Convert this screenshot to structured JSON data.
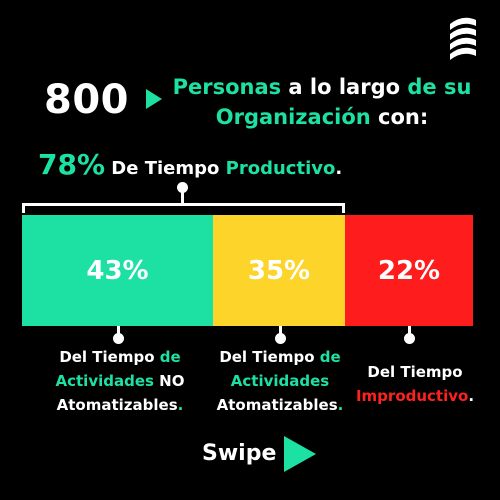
{
  "logo": {
    "icon": "brand-stripes-logo"
  },
  "headline": {
    "number": "800",
    "w1": "Personas",
    "w2": " a lo largo ",
    "w3": "de su",
    "w4": "Organización",
    "w5": " con:"
  },
  "productive": {
    "percent": "78%",
    "prefix": " De Tiempo ",
    "word": "Productivo",
    "suffix": "."
  },
  "segments": [
    {
      "value": "43%",
      "share": 0.43,
      "color": "#1de0a3"
    },
    {
      "value": "35%",
      "share": 0.35,
      "color": "#fdd52a"
    },
    {
      "value": "22%",
      "share": 0.22,
      "color": "#ff1c1c"
    }
  ],
  "captions": {
    "c1": {
      "a": "Del Tiempo ",
      "b": "de",
      "c": "Actividades",
      "d": " NO",
      "e": "Atomatizables",
      "f": "."
    },
    "c2": {
      "a": "Del Tiempo ",
      "b": "de",
      "c": "Actividades",
      "e": "Atomatizables",
      "f": "."
    },
    "c3": {
      "a": "Del Tiempo",
      "b": "Improductivo",
      "c": "."
    }
  },
  "swipe": {
    "label": "Swipe"
  },
  "colors": {
    "accent": "#1de0a3",
    "yellow": "#fdd52a",
    "red": "#ff1c1c",
    "background": "#000000"
  }
}
